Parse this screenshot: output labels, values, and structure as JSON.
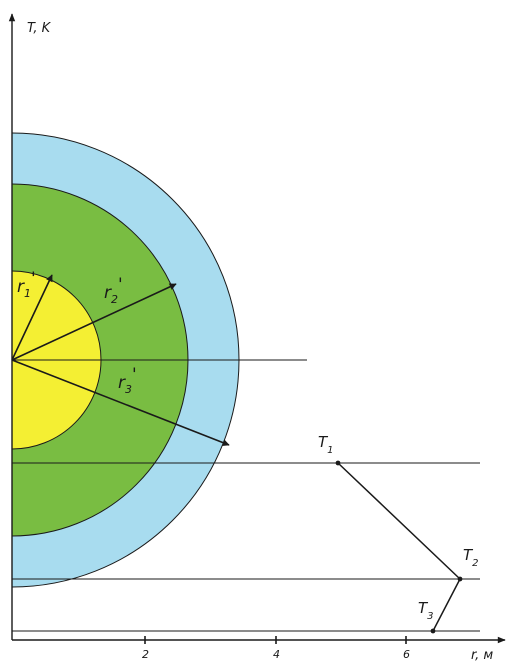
{
  "axes": {
    "y_label": "T, K",
    "x_label": "r, м",
    "x_ticks": [
      "2",
      "4",
      "6"
    ]
  },
  "colors": {
    "outer_layer": "#a8dcef",
    "middle_layer": "#79bd42",
    "inner_core": "#f4ef33",
    "lines": "#1a1a1a"
  },
  "radii": {
    "r1": {
      "symbol": "r",
      "sub": "1",
      "prime": "'"
    },
    "r2": {
      "symbol": "r",
      "sub": "2",
      "prime": "'"
    },
    "r3": {
      "symbol": "r",
      "sub": "3",
      "prime": "'"
    }
  },
  "temperatures": {
    "T1": {
      "symbol": "T",
      "sub": "1"
    },
    "T2": {
      "symbol": "T",
      "sub": "2"
    },
    "T3": {
      "symbol": "T",
      "sub": "3"
    }
  }
}
